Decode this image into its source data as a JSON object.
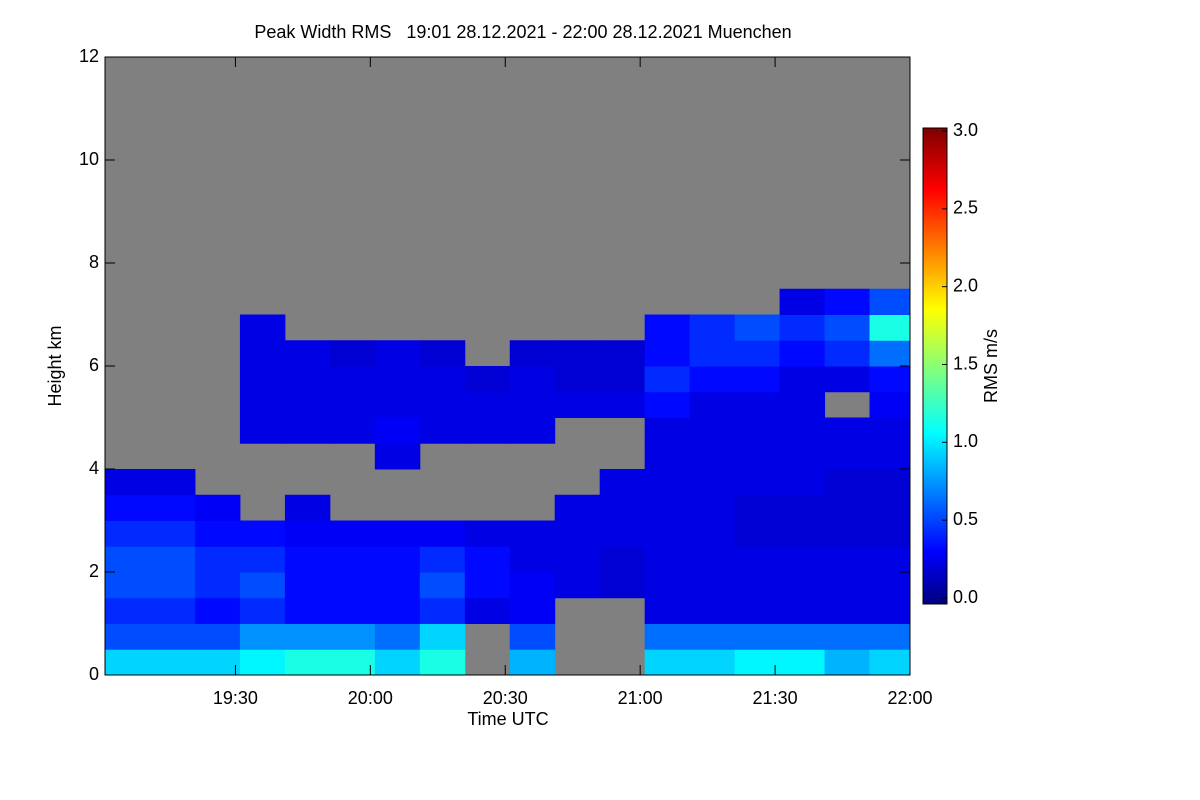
{
  "chart_data": {
    "type": "heatmap",
    "title": "Peak Width RMS   19:01 28.12.2021 - 22:00 28.12.2021 Muenchen",
    "x_label": "Time UTC",
    "y_label": "Height km",
    "colorbar_label": "RMS m/s",
    "background_color": "#808080",
    "colormap": "jet",
    "xlim": [
      1141,
      1320
    ],
    "xticks": [
      {
        "value": 1170,
        "label": "19:30"
      },
      {
        "value": 1200,
        "label": "20:00"
      },
      {
        "value": 1230,
        "label": "20:30"
      },
      {
        "value": 1260,
        "label": "21:00"
      },
      {
        "value": 1290,
        "label": "21:30"
      },
      {
        "value": 1320,
        "label": "22:00"
      }
    ],
    "ylim": [
      0,
      12
    ],
    "yticks": [
      0,
      2,
      4,
      6,
      8,
      10,
      12
    ],
    "zlim": [
      0,
      3
    ],
    "zticks": [
      {
        "value": 0,
        "label": "0.0"
      },
      {
        "value": 0.5,
        "label": "0.5"
      },
      {
        "value": 1,
        "label": "1.0"
      },
      {
        "value": 1.5,
        "label": "1.5"
      },
      {
        "value": 2,
        "label": "2.0"
      },
      {
        "value": 2.5,
        "label": "2.5"
      },
      {
        "value": 3,
        "label": "3.0"
      }
    ],
    "x": [
      1146,
      1156,
      1166,
      1176,
      1186,
      1196,
      1206,
      1216,
      1226,
      1236,
      1246,
      1256,
      1266,
      1276,
      1286,
      1296,
      1306,
      1316
    ],
    "y": [
      0.25,
      0.75,
      1.25,
      1.75,
      2.25,
      2.75,
      3.25,
      3.75,
      4.25,
      4.75,
      5.25,
      5.75,
      6.25,
      6.75,
      7.25
    ],
    "z": [
      [
        1.0,
        0.6,
        0.5,
        0.6,
        0.6,
        0.5,
        0.4,
        0.3,
        null,
        null,
        null,
        null,
        null,
        null,
        null
      ],
      [
        1.0,
        0.6,
        0.5,
        0.6,
        0.6,
        0.5,
        0.4,
        0.3,
        null,
        null,
        null,
        null,
        null,
        null,
        null
      ],
      [
        1.0,
        0.6,
        0.4,
        0.5,
        0.5,
        0.4,
        0.35,
        null,
        null,
        null,
        null,
        null,
        null,
        null,
        null
      ],
      [
        1.1,
        0.8,
        0.5,
        0.6,
        0.5,
        0.4,
        null,
        null,
        null,
        0.3,
        0.3,
        0.3,
        0.3,
        0.3,
        null
      ],
      [
        1.2,
        0.8,
        0.4,
        0.4,
        0.4,
        0.35,
        0.3,
        null,
        null,
        0.3,
        0.3,
        0.3,
        0.3,
        null,
        null
      ],
      [
        1.2,
        0.8,
        0.4,
        0.4,
        0.4,
        0.35,
        null,
        null,
        null,
        0.3,
        0.3,
        0.3,
        0.25,
        null,
        null
      ],
      [
        1.0,
        0.7,
        0.4,
        0.4,
        0.4,
        0.35,
        null,
        null,
        0.3,
        0.35,
        0.3,
        0.3,
        0.3,
        null,
        null
      ],
      [
        1.2,
        1.0,
        0.5,
        0.6,
        0.5,
        0.35,
        null,
        null,
        null,
        0.3,
        0.3,
        0.3,
        0.25,
        null,
        null
      ],
      [
        null,
        null,
        0.3,
        0.4,
        0.4,
        0.3,
        null,
        null,
        null,
        0.3,
        0.3,
        0.25,
        null,
        null,
        null
      ],
      [
        0.9,
        0.6,
        0.35,
        0.35,
        0.3,
        0.3,
        null,
        null,
        null,
        0.3,
        0.3,
        0.3,
        0.25,
        null,
        null
      ],
      [
        null,
        null,
        null,
        0.3,
        0.3,
        0.3,
        0.3,
        null,
        null,
        null,
        0.3,
        0.25,
        0.25,
        null,
        null
      ],
      [
        null,
        null,
        null,
        0.25,
        0.25,
        0.3,
        0.3,
        0.3,
        null,
        null,
        0.3,
        0.25,
        0.25,
        null,
        null
      ],
      [
        1.0,
        0.7,
        0.3,
        0.3,
        0.3,
        0.3,
        0.3,
        0.3,
        0.3,
        0.3,
        0.4,
        0.5,
        0.4,
        0.4,
        null
      ],
      [
        1.0,
        0.7,
        0.3,
        0.3,
        0.3,
        0.3,
        0.3,
        0.3,
        0.3,
        0.3,
        0.3,
        0.4,
        0.5,
        0.5,
        null
      ],
      [
        1.1,
        0.7,
        0.3,
        0.3,
        0.3,
        0.25,
        0.25,
        0.3,
        0.3,
        0.3,
        0.3,
        0.4,
        0.5,
        0.6,
        null
      ],
      [
        1.1,
        0.7,
        0.3,
        0.3,
        0.3,
        0.25,
        0.25,
        0.3,
        0.3,
        0.3,
        0.3,
        0.3,
        0.4,
        0.5,
        0.3
      ],
      [
        0.9,
        0.7,
        0.3,
        0.3,
        0.3,
        0.25,
        0.25,
        0.25,
        0.3,
        0.3,
        null,
        0.3,
        0.5,
        0.6,
        0.4
      ],
      [
        1.0,
        0.7,
        0.3,
        0.3,
        0.3,
        0.25,
        0.25,
        0.25,
        0.3,
        0.3,
        0.35,
        0.4,
        0.7,
        1.2,
        0.6
      ]
    ]
  }
}
